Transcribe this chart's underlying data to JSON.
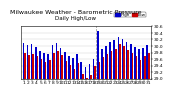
{
  "title": "Milwaukee Weather - Barometric Pressure",
  "subtitle": "Daily High/Low",
  "background_color": "#ffffff",
  "grid_color": "#cccccc",
  "high_color": "#0000cc",
  "low_color": "#cc0000",
  "ylim": [
    29.0,
    30.6
  ],
  "yticks": [
    29.0,
    29.2,
    29.4,
    29.6,
    29.8,
    30.0,
    30.2,
    30.4,
    30.6
  ],
  "days": [
    1,
    2,
    3,
    4,
    5,
    6,
    7,
    8,
    9,
    10,
    11,
    12,
    13,
    14,
    15,
    16,
    17,
    18,
    19,
    20,
    21,
    22,
    23,
    24,
    25,
    26,
    27,
    28,
    29,
    30,
    31
  ],
  "high": [
    30.08,
    30.02,
    30.05,
    29.97,
    29.85,
    29.8,
    29.75,
    30.02,
    30.1,
    29.95,
    29.82,
    29.7,
    29.62,
    29.75,
    29.5,
    29.35,
    29.45,
    29.6,
    30.45,
    29.9,
    30.0,
    30.12,
    30.18,
    30.28,
    30.22,
    30.12,
    30.05,
    29.98,
    29.9,
    29.95,
    30.02
  ],
  "low": [
    29.8,
    29.72,
    29.75,
    29.68,
    29.6,
    29.52,
    29.58,
    29.78,
    29.85,
    29.72,
    29.55,
    29.42,
    29.3,
    29.48,
    29.15,
    29.02,
    29.12,
    29.38,
    29.52,
    29.65,
    29.75,
    29.85,
    29.92,
    30.05,
    30.0,
    29.88,
    29.78,
    29.7,
    29.58,
    29.68,
    29.78
  ],
  "dashed_line_x": 17.5,
  "title_fontsize": 4.5,
  "tick_fontsize": 3.2,
  "legend_fontsize": 3.0,
  "bar_width": 0.38
}
